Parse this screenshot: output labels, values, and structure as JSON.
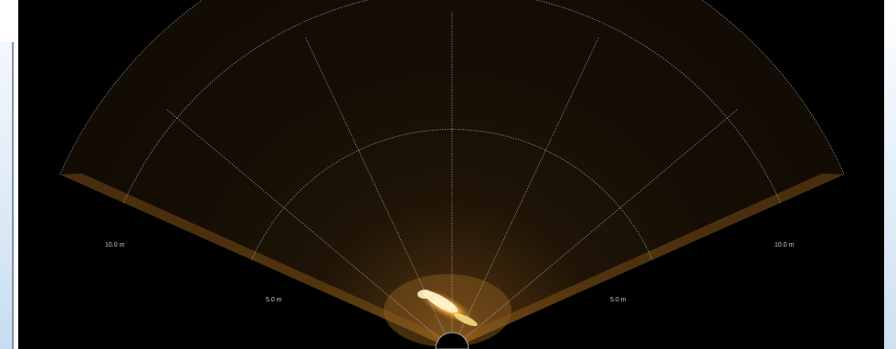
{
  "sonar": {
    "range_labels": {
      "inner_left": "5.0 m",
      "inner_right": "5.0 m",
      "outer_left": "10.0 m",
      "outer_right": "10.0 m"
    },
    "colors": {
      "background": "#000000",
      "echo": "#c8822a",
      "echo_bright": "#ffd27a",
      "grid": "#e6e6e6"
    }
  }
}
